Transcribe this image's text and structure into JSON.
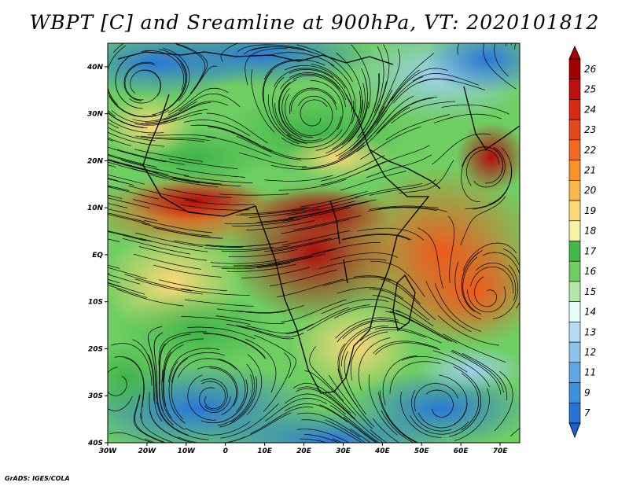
{
  "title": "WBPT [C] and Sreamline at 900hPa, VT: 2020101812",
  "credit": "GrADS: IGES/COLA",
  "map": {
    "lon_range": [
      -30,
      75
    ],
    "lat_range": [
      -40,
      45
    ],
    "lat_ticks": [
      {
        "value": 40,
        "label": "40N"
      },
      {
        "value": 30,
        "label": "30N"
      },
      {
        "value": 20,
        "label": "20N"
      },
      {
        "value": 10,
        "label": "10N"
      },
      {
        "value": 0,
        "label": "EQ"
      },
      {
        "value": -10,
        "label": "10S"
      },
      {
        "value": -20,
        "label": "20S"
      },
      {
        "value": -30,
        "label": "30S"
      },
      {
        "value": -40,
        "label": "40S"
      }
    ],
    "lon_ticks": [
      {
        "value": -30,
        "label": "30W"
      },
      {
        "value": -20,
        "label": "20W"
      },
      {
        "value": -10,
        "label": "10W"
      },
      {
        "value": 0,
        "label": "0"
      },
      {
        "value": 10,
        "label": "10E"
      },
      {
        "value": 20,
        "label": "20E"
      },
      {
        "value": 30,
        "label": "30E"
      },
      {
        "value": 40,
        "label": "40E"
      },
      {
        "value": 50,
        "label": "50E"
      },
      {
        "value": 60,
        "label": "60E"
      },
      {
        "value": 70,
        "label": "70E"
      }
    ]
  },
  "colorbar": {
    "levels": [
      {
        "label": "26",
        "color": "#a50000"
      },
      {
        "label": "25",
        "color": "#c00d0d"
      },
      {
        "label": "24",
        "color": "#d62a12"
      },
      {
        "label": "23",
        "color": "#e5481b"
      },
      {
        "label": "22",
        "color": "#f06b20"
      },
      {
        "label": "21",
        "color": "#f79425"
      },
      {
        "label": "20",
        "color": "#fab84a"
      },
      {
        "label": "19",
        "color": "#fbd877"
      },
      {
        "label": "18",
        "color": "#f8f3a6"
      },
      {
        "label": "17",
        "color": "#43b74a"
      },
      {
        "label": "16",
        "color": "#6fce62"
      },
      {
        "label": "15",
        "color": "#b4e8a8"
      },
      {
        "label": "14",
        "color": "#e8fbfb"
      },
      {
        "label": "13",
        "color": "#b5dcf4"
      },
      {
        "label": "12",
        "color": "#8cc4ef"
      },
      {
        "label": "11",
        "color": "#5ea8e8"
      },
      {
        "label": "9",
        "color": "#3d8fe0"
      },
      {
        "label": "7",
        "color": "#2773d6"
      }
    ],
    "under_color": "#1b5fc9"
  }
}
